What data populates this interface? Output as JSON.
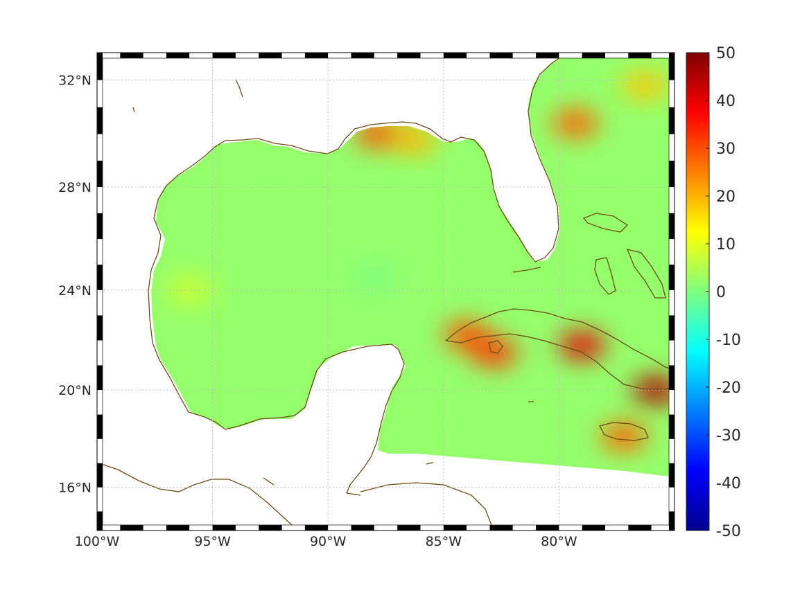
{
  "map": {
    "projection": "mercator",
    "lon_range": [
      -100,
      -75
    ],
    "lat_range": [
      14.2,
      33
    ],
    "grid": true,
    "frame": "alternating black/white border",
    "lon_ticks": [
      {
        "value": -100,
        "label": "100°W"
      },
      {
        "value": -95,
        "label": "95°W"
      },
      {
        "value": -90,
        "label": "90°W"
      },
      {
        "value": -85,
        "label": "85°W"
      },
      {
        "value": -80,
        "label": "80°W"
      }
    ],
    "lat_ticks": [
      {
        "value": 32,
        "label": "32°N"
      },
      {
        "value": 28,
        "label": "28°N"
      },
      {
        "value": 24,
        "label": "24°N"
      },
      {
        "value": 20,
        "label": "20°N"
      },
      {
        "value": 16,
        "label": "16°N"
      }
    ],
    "field": {
      "colormap": "jet",
      "range": [
        -50,
        50
      ],
      "background_value": 2,
      "hotspots": [
        {
          "region": "Mississippi/Alabama coast",
          "lon": -87.8,
          "lat": 30.0,
          "value": 30
        },
        {
          "region": "Florida panhandle coast",
          "lon": -86.3,
          "lat": 29.8,
          "value": 20
        },
        {
          "region": "Georgia/SE US",
          "lon": -79.3,
          "lat": 30.4,
          "value": 28
        },
        {
          "region": "SE US northeast",
          "lon": -76.3,
          "lat": 31.8,
          "value": 18
        },
        {
          "region": "West Cuba",
          "lon": -84.0,
          "lat": 22.2,
          "value": 30
        },
        {
          "region": "Isla de la Juventud",
          "lon": -82.8,
          "lat": 21.5,
          "value": 32
        },
        {
          "region": "Central Cuba",
          "lon": -79.0,
          "lat": 21.8,
          "value": 40
        },
        {
          "region": "East Cuba",
          "lon": -75.8,
          "lat": 20.0,
          "value": 45
        },
        {
          "region": "Jamaica",
          "lon": -77.2,
          "lat": 18.1,
          "value": 28
        },
        {
          "region": "Western Gulf",
          "lon": -96.0,
          "lat": 24.0,
          "value": 8
        },
        {
          "region": "Central Gulf",
          "lon": -88.0,
          "lat": 24.5,
          "value": 0
        }
      ]
    },
    "coastline_color": "#6b4a12"
  },
  "colorbar": {
    "min": -50,
    "max": 50,
    "ticks": [
      {
        "value": 50,
        "label": "50"
      },
      {
        "value": 40,
        "label": "40"
      },
      {
        "value": 30,
        "label": "30"
      },
      {
        "value": 20,
        "label": "20"
      },
      {
        "value": 10,
        "label": "10"
      },
      {
        "value": 0,
        "label": "0"
      },
      {
        "value": -10,
        "label": "-10"
      },
      {
        "value": -20,
        "label": "-20"
      },
      {
        "value": -30,
        "label": "-30"
      },
      {
        "value": -40,
        "label": "-40"
      },
      {
        "value": -50,
        "label": "-50"
      }
    ]
  }
}
